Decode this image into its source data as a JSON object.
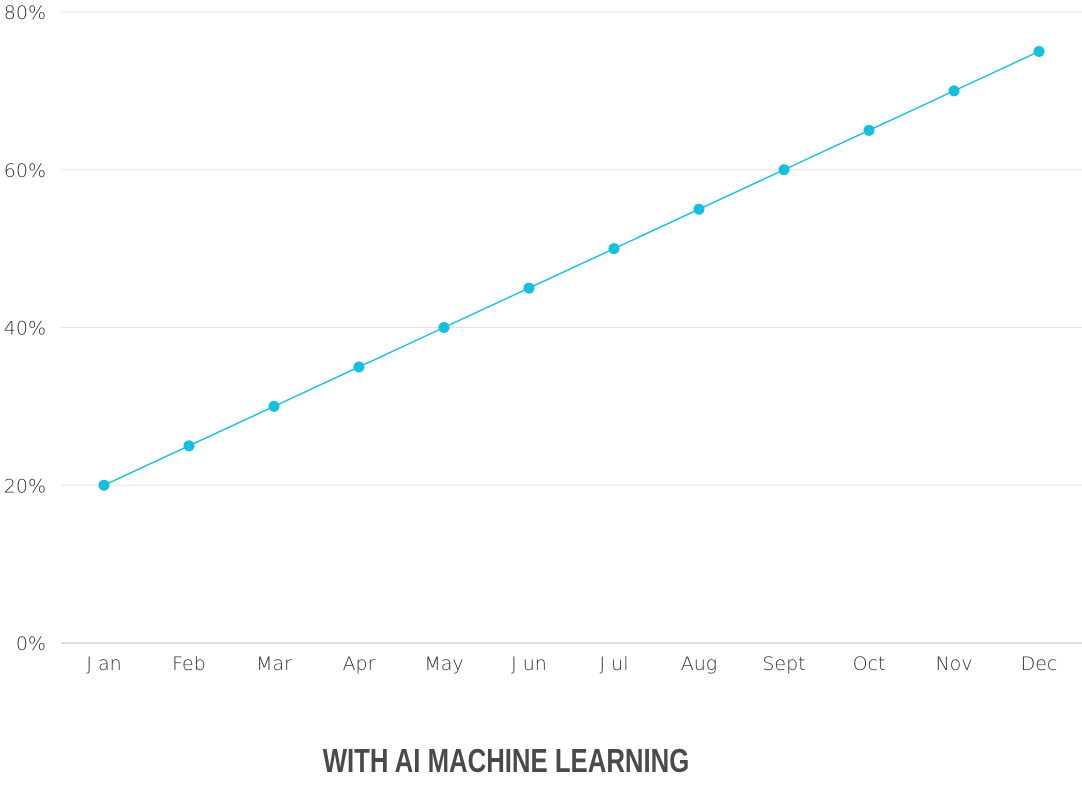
{
  "chart_data": {
    "type": "line",
    "title": "",
    "xlabel": "",
    "ylabel": "",
    "categories": [
      "J an",
      "Feb",
      "Mar",
      "Apr",
      "May",
      "J un",
      "J ul",
      "Aug",
      "Sept",
      "Oct",
      "Nov",
      "Dec"
    ],
    "series": [
      {
        "values": [
          20,
          25,
          30,
          35,
          40,
          45,
          50,
          55,
          60,
          65,
          70,
          75
        ]
      }
    ],
    "ylim": [
      0,
      80
    ],
    "yticks": [
      0,
      20,
      40,
      60,
      80
    ],
    "ytick_labels": [
      "0%",
      "20%",
      "40%",
      "60%",
      "80%"
    ],
    "grid": true,
    "legend": "none"
  },
  "caption": "WITH AI MACHINE LEARNING",
  "colors": {
    "series": "#17bfdf",
    "grid": "#e3e3e3",
    "axis": "#bbbbbb",
    "text": "#333333",
    "caption": "#4a4a4a"
  }
}
